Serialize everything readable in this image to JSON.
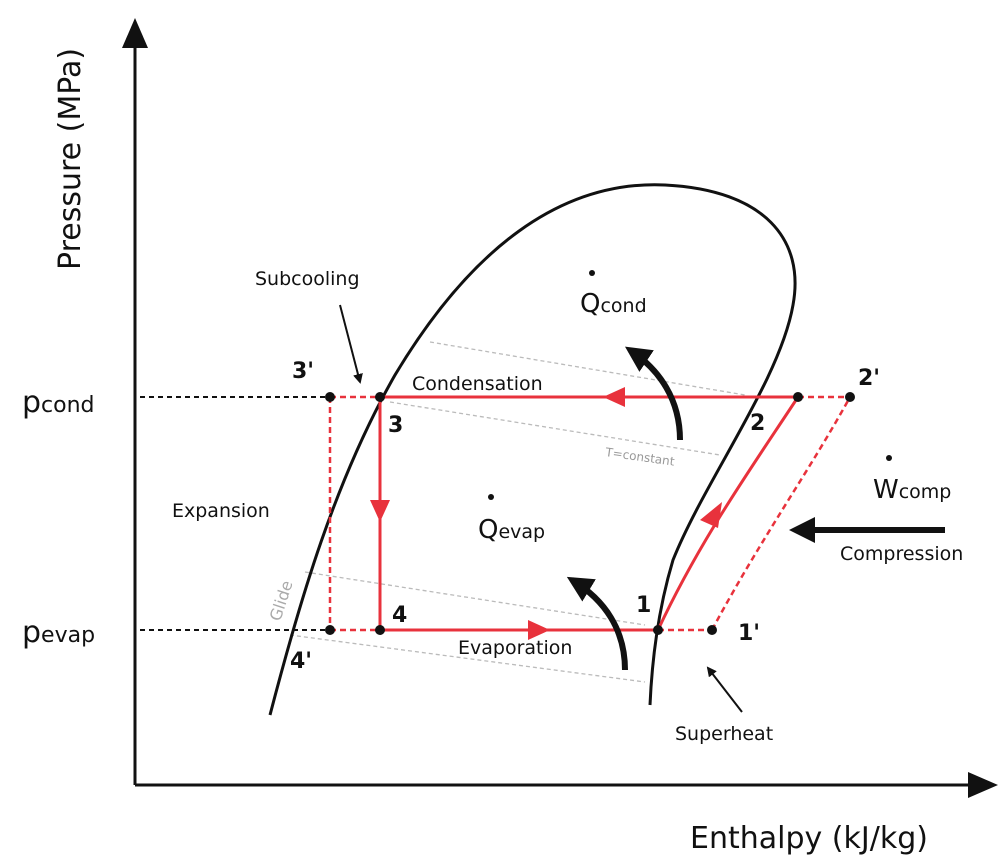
{
  "axes": {
    "y_label": "Pressure (MPa)",
    "x_label": "Enthalpy (kJ/kg)"
  },
  "levels": {
    "cond": {
      "main": "p",
      "sub": "cond"
    },
    "evap": {
      "main": "p",
      "sub": "evap"
    }
  },
  "points": {
    "p3prime": "3'",
    "p3": "3",
    "p2": "2",
    "p2prime": "2'",
    "p4prime": "4'",
    "p4": "4",
    "p1": "1",
    "p1prime": "1'"
  },
  "labels": {
    "subcooling": "Subcooling",
    "condensation": "Condensation",
    "t_constant": "T=constant",
    "expansion": "Expansion",
    "glide": "Glide",
    "evaporation": "Evaporation",
    "superheat": "Superheat",
    "compression": "Compression"
  },
  "quantities": {
    "q_cond": {
      "main": "Q",
      "sub": "cond"
    },
    "q_evap": {
      "main": "Q",
      "sub": "evap"
    },
    "w_comp": {
      "main": "W",
      "sub": "comp"
    }
  }
}
